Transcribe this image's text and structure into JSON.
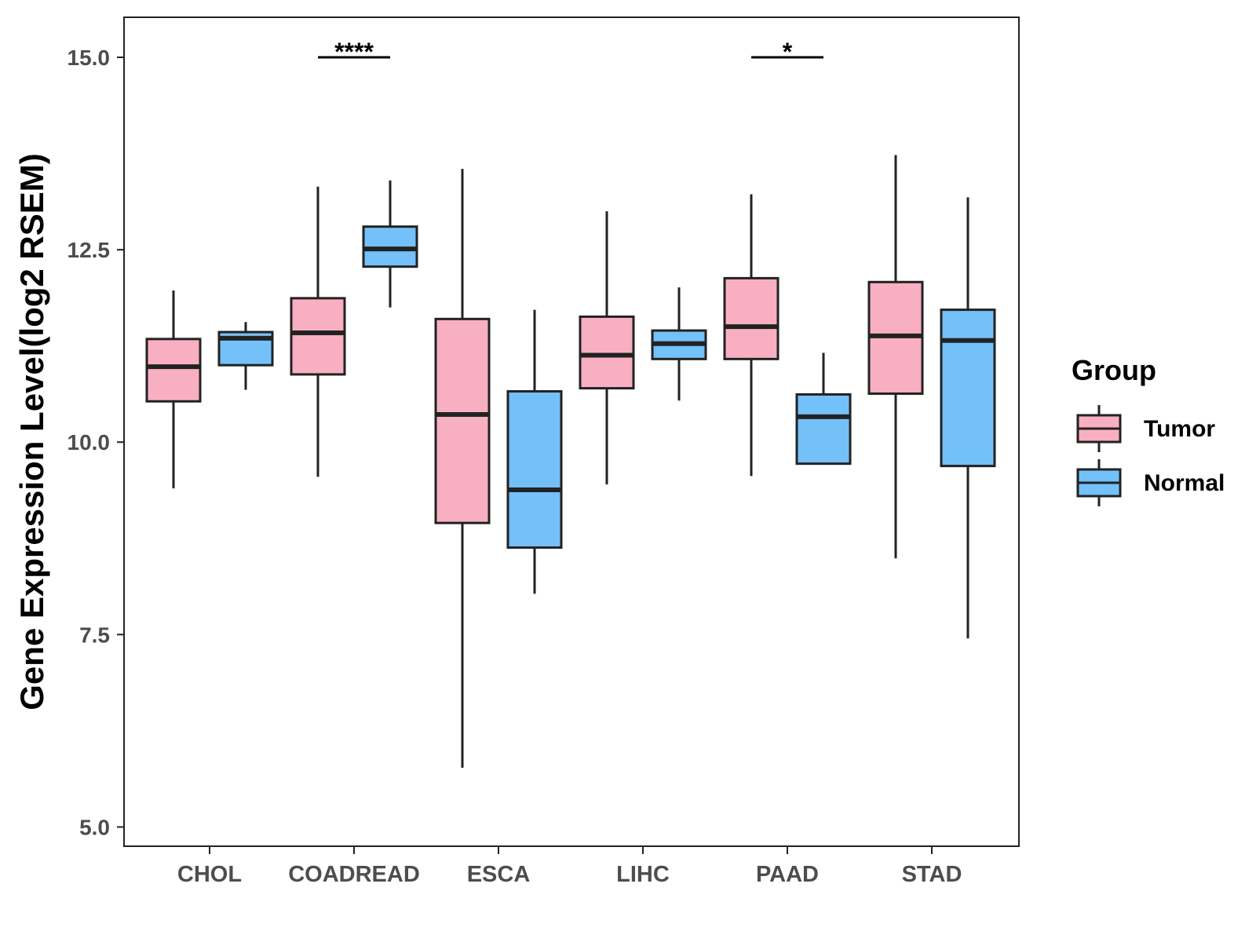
{
  "chart_data": {
    "type": "boxplot",
    "title": "",
    "xlabel": "",
    "ylabel": "Gene Expression Level(log2 RSEM)",
    "ylim": [
      4.75,
      15.52
    ],
    "yticks": [
      5.0,
      7.5,
      10.0,
      12.5,
      15.0
    ],
    "ytick_labels": [
      "5.0",
      "7.5",
      "10.0",
      "12.5",
      "15.0"
    ],
    "categories": [
      "CHOL",
      "COADREAD",
      "ESCA",
      "LIHC",
      "PAAD",
      "STAD"
    ],
    "legend": {
      "title": "Group",
      "position": "right"
    },
    "series": [
      {
        "name": "Tumor",
        "color": "#F8AFC1",
        "boxes": [
          {
            "whisker_low": 9.4,
            "q1": 10.53,
            "median": 10.98,
            "q3": 11.34,
            "whisker_high": 11.97
          },
          {
            "whisker_low": 9.55,
            "q1": 10.88,
            "median": 11.42,
            "q3": 11.87,
            "whisker_high": 13.32
          },
          {
            "whisker_low": 5.77,
            "q1": 8.95,
            "median": 10.36,
            "q3": 11.6,
            "whisker_high": 13.55
          },
          {
            "whisker_low": 9.45,
            "q1": 10.7,
            "median": 11.13,
            "q3": 11.63,
            "whisker_high": 13.0
          },
          {
            "whisker_low": 9.56,
            "q1": 11.08,
            "median": 11.5,
            "q3": 12.13,
            "whisker_high": 13.22
          },
          {
            "whisker_low": 8.49,
            "q1": 10.63,
            "median": 11.38,
            "q3": 12.08,
            "whisker_high": 13.73
          }
        ]
      },
      {
        "name": "Normal",
        "color": "#74C0F8",
        "boxes": [
          {
            "whisker_low": 10.68,
            "q1": 11.0,
            "median": 11.35,
            "q3": 11.43,
            "whisker_high": 11.56
          },
          {
            "whisker_low": 11.75,
            "q1": 12.28,
            "median": 12.51,
            "q3": 12.8,
            "whisker_high": 13.4
          },
          {
            "whisker_low": 8.03,
            "q1": 8.63,
            "median": 9.38,
            "q3": 10.66,
            "whisker_high": 11.72
          },
          {
            "whisker_low": 10.54,
            "q1": 11.08,
            "median": 11.28,
            "q3": 11.45,
            "whisker_high": 12.01
          },
          {
            "whisker_low": null,
            "q1": 9.72,
            "median": 10.33,
            "q3": 10.62,
            "whisker_high": 11.16
          },
          {
            "whisker_low": 7.45,
            "q1": 9.69,
            "median": 11.32,
            "q3": 11.72,
            "whisker_high": 13.18
          }
        ]
      }
    ],
    "annotations": [
      {
        "category": "COADREAD",
        "text": "****",
        "y": 15.0
      },
      {
        "category": "PAAD",
        "text": "*",
        "y": 15.0
      }
    ]
  }
}
